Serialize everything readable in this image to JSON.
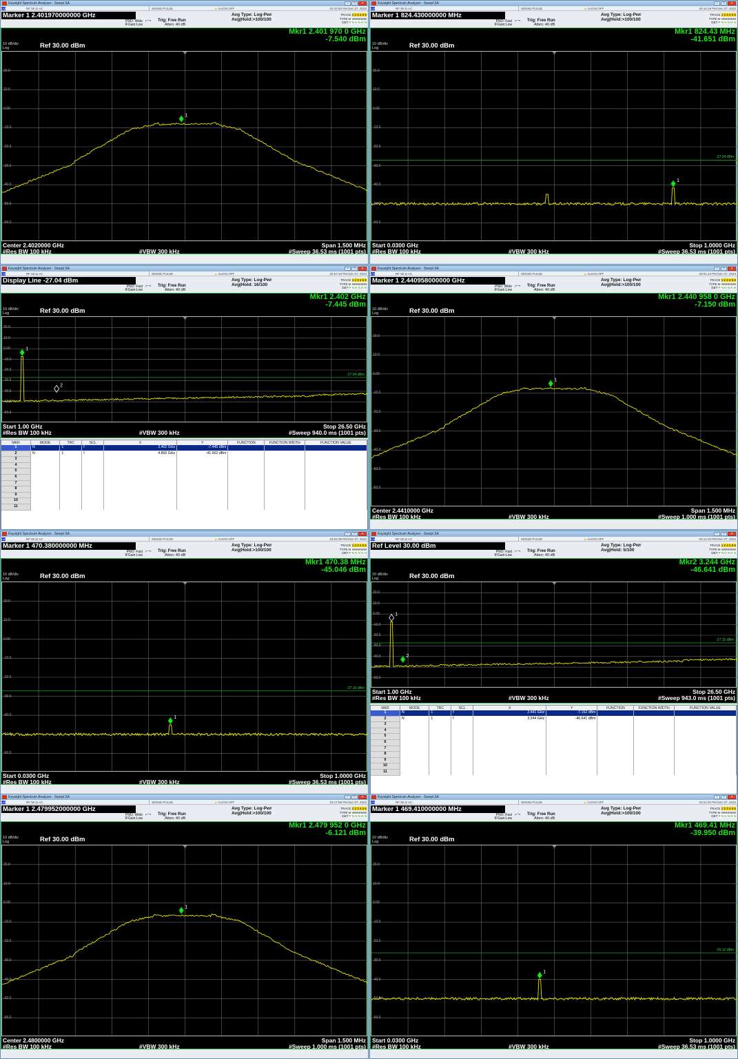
{
  "app_title": "Keysight Spectrum Analyzer - Swept SA",
  "status_bar": {
    "mode": "LXI",
    "rf": "RF   50 Ω   AC",
    "sense": "SENSE:PULSE",
    "align": "ALIGN OFF"
  },
  "labels": {
    "trig": "Trig: Free Run",
    "atten": "Atten: 40 dB",
    "scale": "10 dB/div",
    "log": "Log",
    "ref": "Ref 30.00 dBm",
    "trace": "TRACE",
    "type": "TYPE",
    "det": "DET",
    "trace_nums": "1 2 3 4 5 6",
    "type_val": "M WWWWW",
    "det_val": "P N N N N N"
  },
  "icons": {
    "app": "keysight-app-icon",
    "minimize": "minimize-icon",
    "maximize": "maximize-icon",
    "close": "close-icon",
    "trigger": "trigger-icon"
  },
  "y_ticks": [
    "20.0",
    "10.0",
    "0.00",
    "-10.0",
    "-20.0",
    "-30.0",
    "-40.0",
    "-50.0",
    "-60.0"
  ],
  "table_cols": [
    "MKR",
    "MODE",
    "TRC",
    "SCL",
    "X",
    "Y",
    "FUNCTION",
    "FUNCTION WIDTH",
    "FUNCTION VALUE"
  ],
  "windows": [
    {
      "timestamp": "02:42:50 PM Dec 07, 2023",
      "header": "Marker 1 2.401970000000 GHz",
      "pno": "PNO: Wide",
      "ifgain": "IFGain:Low",
      "avg_type": "Avg Type: Log-Pwr",
      "avg_hold": "Avg|Hold:>100/100",
      "mkr_line1": "Mkr1 2.401 970 0 GHz",
      "mkr_line2": "-7.540 dBm",
      "left_axis": "Center 2.4020000 GHz",
      "right_axis": "Span 1.500 MHz",
      "rbw": "#Res BW 100 kHz",
      "vbw": "#VBW 300 kHz",
      "sweep": "#Sweep  36.53 ms (1001 pts)",
      "trace": {
        "kind": "channel",
        "peak_level_dbm": -7.5,
        "marker_x_frac": 0.49
      }
    },
    {
      "timestamp": "02:44:19 PM Dec 07, 2023",
      "header": "Marker 1 824.430000000 MHz",
      "pno": "PNO: Fast",
      "ifgain": "IFGain:Low",
      "avg_type": "Avg Type: Log-Pwr",
      "avg_hold": "Avg|Hold:>100/100",
      "mkr_line1": "Mkr1 824.43 MHz",
      "mkr_line2": "-41.651 dBm",
      "left_axis": "Start 0.0300 GHz",
      "right_axis": "Stop 1.0000 GHz",
      "rbw": "#Res BW 100 kHz",
      "vbw": "#VBW 300 kHz",
      "sweep": "#Sweep  36.53 ms (1001 pts)",
      "display_line": "-27.04 dBm",
      "display_line_dbm": -27.04,
      "trace": {
        "kind": "floor",
        "noise_floor_dbm": -50,
        "marker_x_frac": 0.825,
        "marker_level_dbm": -41.651
      }
    },
    {
      "timestamp": "02:57:10 PM Dec 07, 2023",
      "header": "Display Line -27.04 dBm",
      "pno": "PNO: Fast",
      "ifgain": "IFGain:Low",
      "avg_type": "Avg Type: Log-Pwr",
      "avg_hold": "Avg|Hold: 16/100",
      "mkr_line1": "Mkr1 2.402 GHz",
      "mkr_line2": "-7.445 dBm",
      "left_axis": "Start 1.00 GHz",
      "right_axis": "Stop 26.50 GHz",
      "rbw": "#Res BW 100 kHz",
      "vbw": "#VBW 300 kHz",
      "sweep": "#Sweep  940.0 ms (1001 pts)",
      "display_line": "-27.04 dBm",
      "display_line_dbm": -27.04,
      "trace": {
        "kind": "wide",
        "marker_x_frac": 0.055,
        "marker2_x_frac": 0.149
      },
      "markers_table": [
        {
          "num": "1",
          "mode": "N",
          "trc": "1",
          "scl": "f",
          "x": "2.402 GHz",
          "y": "-7.445 dBm"
        },
        {
          "num": "2",
          "mode": "N",
          "trc": "1",
          "scl": "f",
          "x": "4.800 GHz",
          "y": "-41.662 dBm"
        },
        {
          "num": "3"
        },
        {
          "num": "4"
        },
        {
          "num": "5"
        },
        {
          "num": "6"
        },
        {
          "num": "7"
        },
        {
          "num": "8"
        },
        {
          "num": "9"
        },
        {
          "num": "10"
        },
        {
          "num": "11"
        }
      ]
    },
    {
      "timestamp": "03:01:24 PM Dec 07, 2023",
      "header": "Marker 1 2.440958000000 GHz",
      "pno": "PNO: Wide",
      "ifgain": "IFGain:Low",
      "avg_type": "Avg Type: Log-Pwr",
      "avg_hold": "Avg|Hold:>100/100",
      "mkr_line1": "Mkr1 2.440 958 0 GHz",
      "mkr_line2": "-7.150 dBm",
      "left_axis": "Center 2.4410000 GHz",
      "right_axis": "Span 1.500 MHz",
      "rbw": "#Res BW 100 kHz",
      "vbw": "#VBW 300 kHz",
      "sweep": "#Sweep  1.000 ms (1001 pts)",
      "trace": {
        "kind": "channel",
        "peak_level_dbm": -7.2,
        "marker_x_frac": 0.49
      }
    },
    {
      "timestamp": "03:04:39 PM Dec 07, 2023",
      "header": "Marker 1 470.380000000 MHz",
      "pno": "PNO: Fast",
      "ifgain": "IFGain:Low",
      "avg_type": "Avg Type: Log-Pwr",
      "avg_hold": "Avg|Hold:>100/100",
      "mkr_line1": "Mkr1 470.38 MHz",
      "mkr_line2": "-45.046 dBm",
      "left_axis": "Start 0.0300 GHz",
      "right_axis": "Stop 1.0000 GHz",
      "rbw": "#Res BW 100 kHz",
      "vbw": "#VBW 300 kHz",
      "sweep": "#Sweep  36.53 ms (1001 pts)",
      "display_line": "-27.15 dBm",
      "display_line_dbm": -27.15,
      "trace": {
        "kind": "floor",
        "noise_floor_dbm": -50,
        "marker_x_frac": 0.46,
        "marker_level_dbm": -45.046
      }
    },
    {
      "timestamp": "03:14:33 PM Dec 07, 2023",
      "header": "Ref Level 30.00 dBm",
      "pno": "PNO: Fast",
      "ifgain": "IFGain:Low",
      "avg_type": "Avg Type: Log-Pwr",
      "avg_hold": "Avg|Hold: 5/100",
      "mkr_line1": "Mkr2 3.244 GHz",
      "mkr_line2": "-46.641 dBm",
      "left_axis": "Start 1.00 GHz",
      "right_axis": "Stop 26.50 GHz",
      "rbw": "#Res BW 100 kHz",
      "vbw": "#VBW 300 kHz",
      "sweep": "#Sweep  943.0 ms (1001 pts)",
      "display_line": "-27.15 dBm",
      "display_line_dbm": -27.15,
      "trace": {
        "kind": "wide",
        "marker_x_frac": 0.055,
        "marker2_x_frac": 0.086
      },
      "markers_table": [
        {
          "num": "1",
          "mode": "N",
          "trc": "1",
          "scl": "f",
          "x": "2.441 GHz",
          "y": "-7.152 dBm"
        },
        {
          "num": "2",
          "mode": "N",
          "trc": "1",
          "scl": "f",
          "x": "3.244 GHz",
          "y": "-46.641 dBm"
        },
        {
          "num": "3"
        },
        {
          "num": "4"
        },
        {
          "num": "5"
        },
        {
          "num": "6"
        },
        {
          "num": "7"
        },
        {
          "num": "8"
        },
        {
          "num": "9"
        },
        {
          "num": "10"
        },
        {
          "num": "11"
        }
      ]
    },
    {
      "timestamp": "03:17:58 PM Dec 07, 2023",
      "header": "Marker 1 2.479952000000 GHz",
      "pno": "PNO: Wide",
      "ifgain": "IFGain:Low",
      "avg_type": "Avg Type: Log-Pwr",
      "avg_hold": "Avg|Hold:>100/100",
      "mkr_line1": "Mkr1 2.479 952 0 GHz",
      "mkr_line2": "-6.121 dBm",
      "left_axis": "Center 2.4800000 GHz",
      "right_axis": "Span 1.500 MHz",
      "rbw": "#Res BW 100 kHz",
      "vbw": "#VBW 300 kHz",
      "sweep": "#Sweep  1.000 ms (1001 pts)",
      "trace": {
        "kind": "channel",
        "peak_level_dbm": -6.1,
        "marker_x_frac": 0.49
      }
    },
    {
      "timestamp": "03:21:02 PM Dec 07, 2023",
      "header": "Marker 1 469.410000000 MHz",
      "pno": "PNO: Fast",
      "ifgain": "IFGain:Low",
      "avg_type": "Avg Type: Log-Pwr",
      "avg_hold": "Avg|Hold:>100/100",
      "mkr_line1": "Mkr1 469.41 MHz",
      "mkr_line2": "-39.950 dBm",
      "left_axis": "Start 0.0300 GHz",
      "right_axis": "Stop 1.0000 GHz",
      "rbw": "#Res BW 100 kHz",
      "vbw": "#VBW 300 kHz",
      "sweep": "#Sweep  36.53 ms (1001 pts)",
      "display_line": "-26.12 dBm",
      "display_line_dbm": -26.12,
      "trace": {
        "kind": "floor",
        "noise_floor_dbm": -50,
        "marker_x_frac": 0.46,
        "marker_level_dbm": -39.95
      }
    }
  ]
}
